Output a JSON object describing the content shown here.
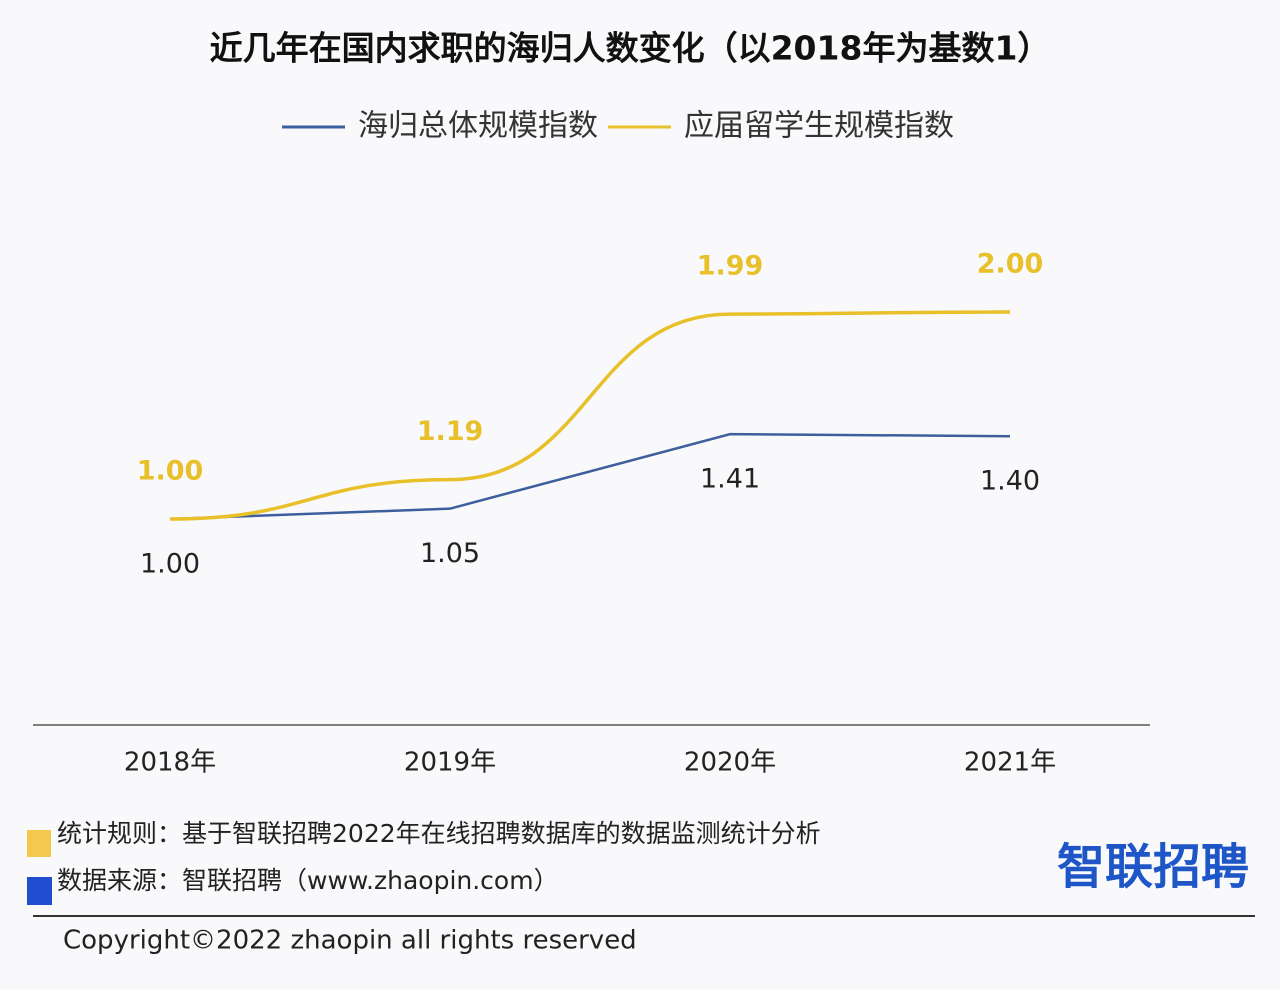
{
  "chart_data": {
    "type": "line",
    "title": "近几年在国内求职的海归人数变化（以2018年为基数1）",
    "categories": [
      "2018年",
      "2019年",
      "2020年",
      "2021年"
    ],
    "series": [
      {
        "name": "海归总体规模指数",
        "color": "#3d5f9e",
        "smooth": false,
        "values": [
          1.0,
          1.05,
          1.41,
          1.4
        ],
        "value_labels": [
          "1.00",
          "1.05",
          "1.41",
          "1.40"
        ]
      },
      {
        "name": "应届留学生规模指数",
        "color": "#e8c02a",
        "smooth": true,
        "values": [
          1.0,
          1.19,
          1.99,
          2.0
        ],
        "value_labels": [
          "1.00",
          "1.19",
          "1.99",
          "2.00"
        ]
      }
    ],
    "ylim": [
      0,
      2.5
    ],
    "grid": false,
    "legend": "top"
  },
  "footer": {
    "rule": "统计规则：基于智联招聘2022年在线招聘数据库的数据监测统计分析",
    "source": "数据来源：智联招聘（www.zhaopin.com）",
    "logo": "智联招聘",
    "copyright": "Copyright©2022 zhaopin all rights reserved"
  }
}
